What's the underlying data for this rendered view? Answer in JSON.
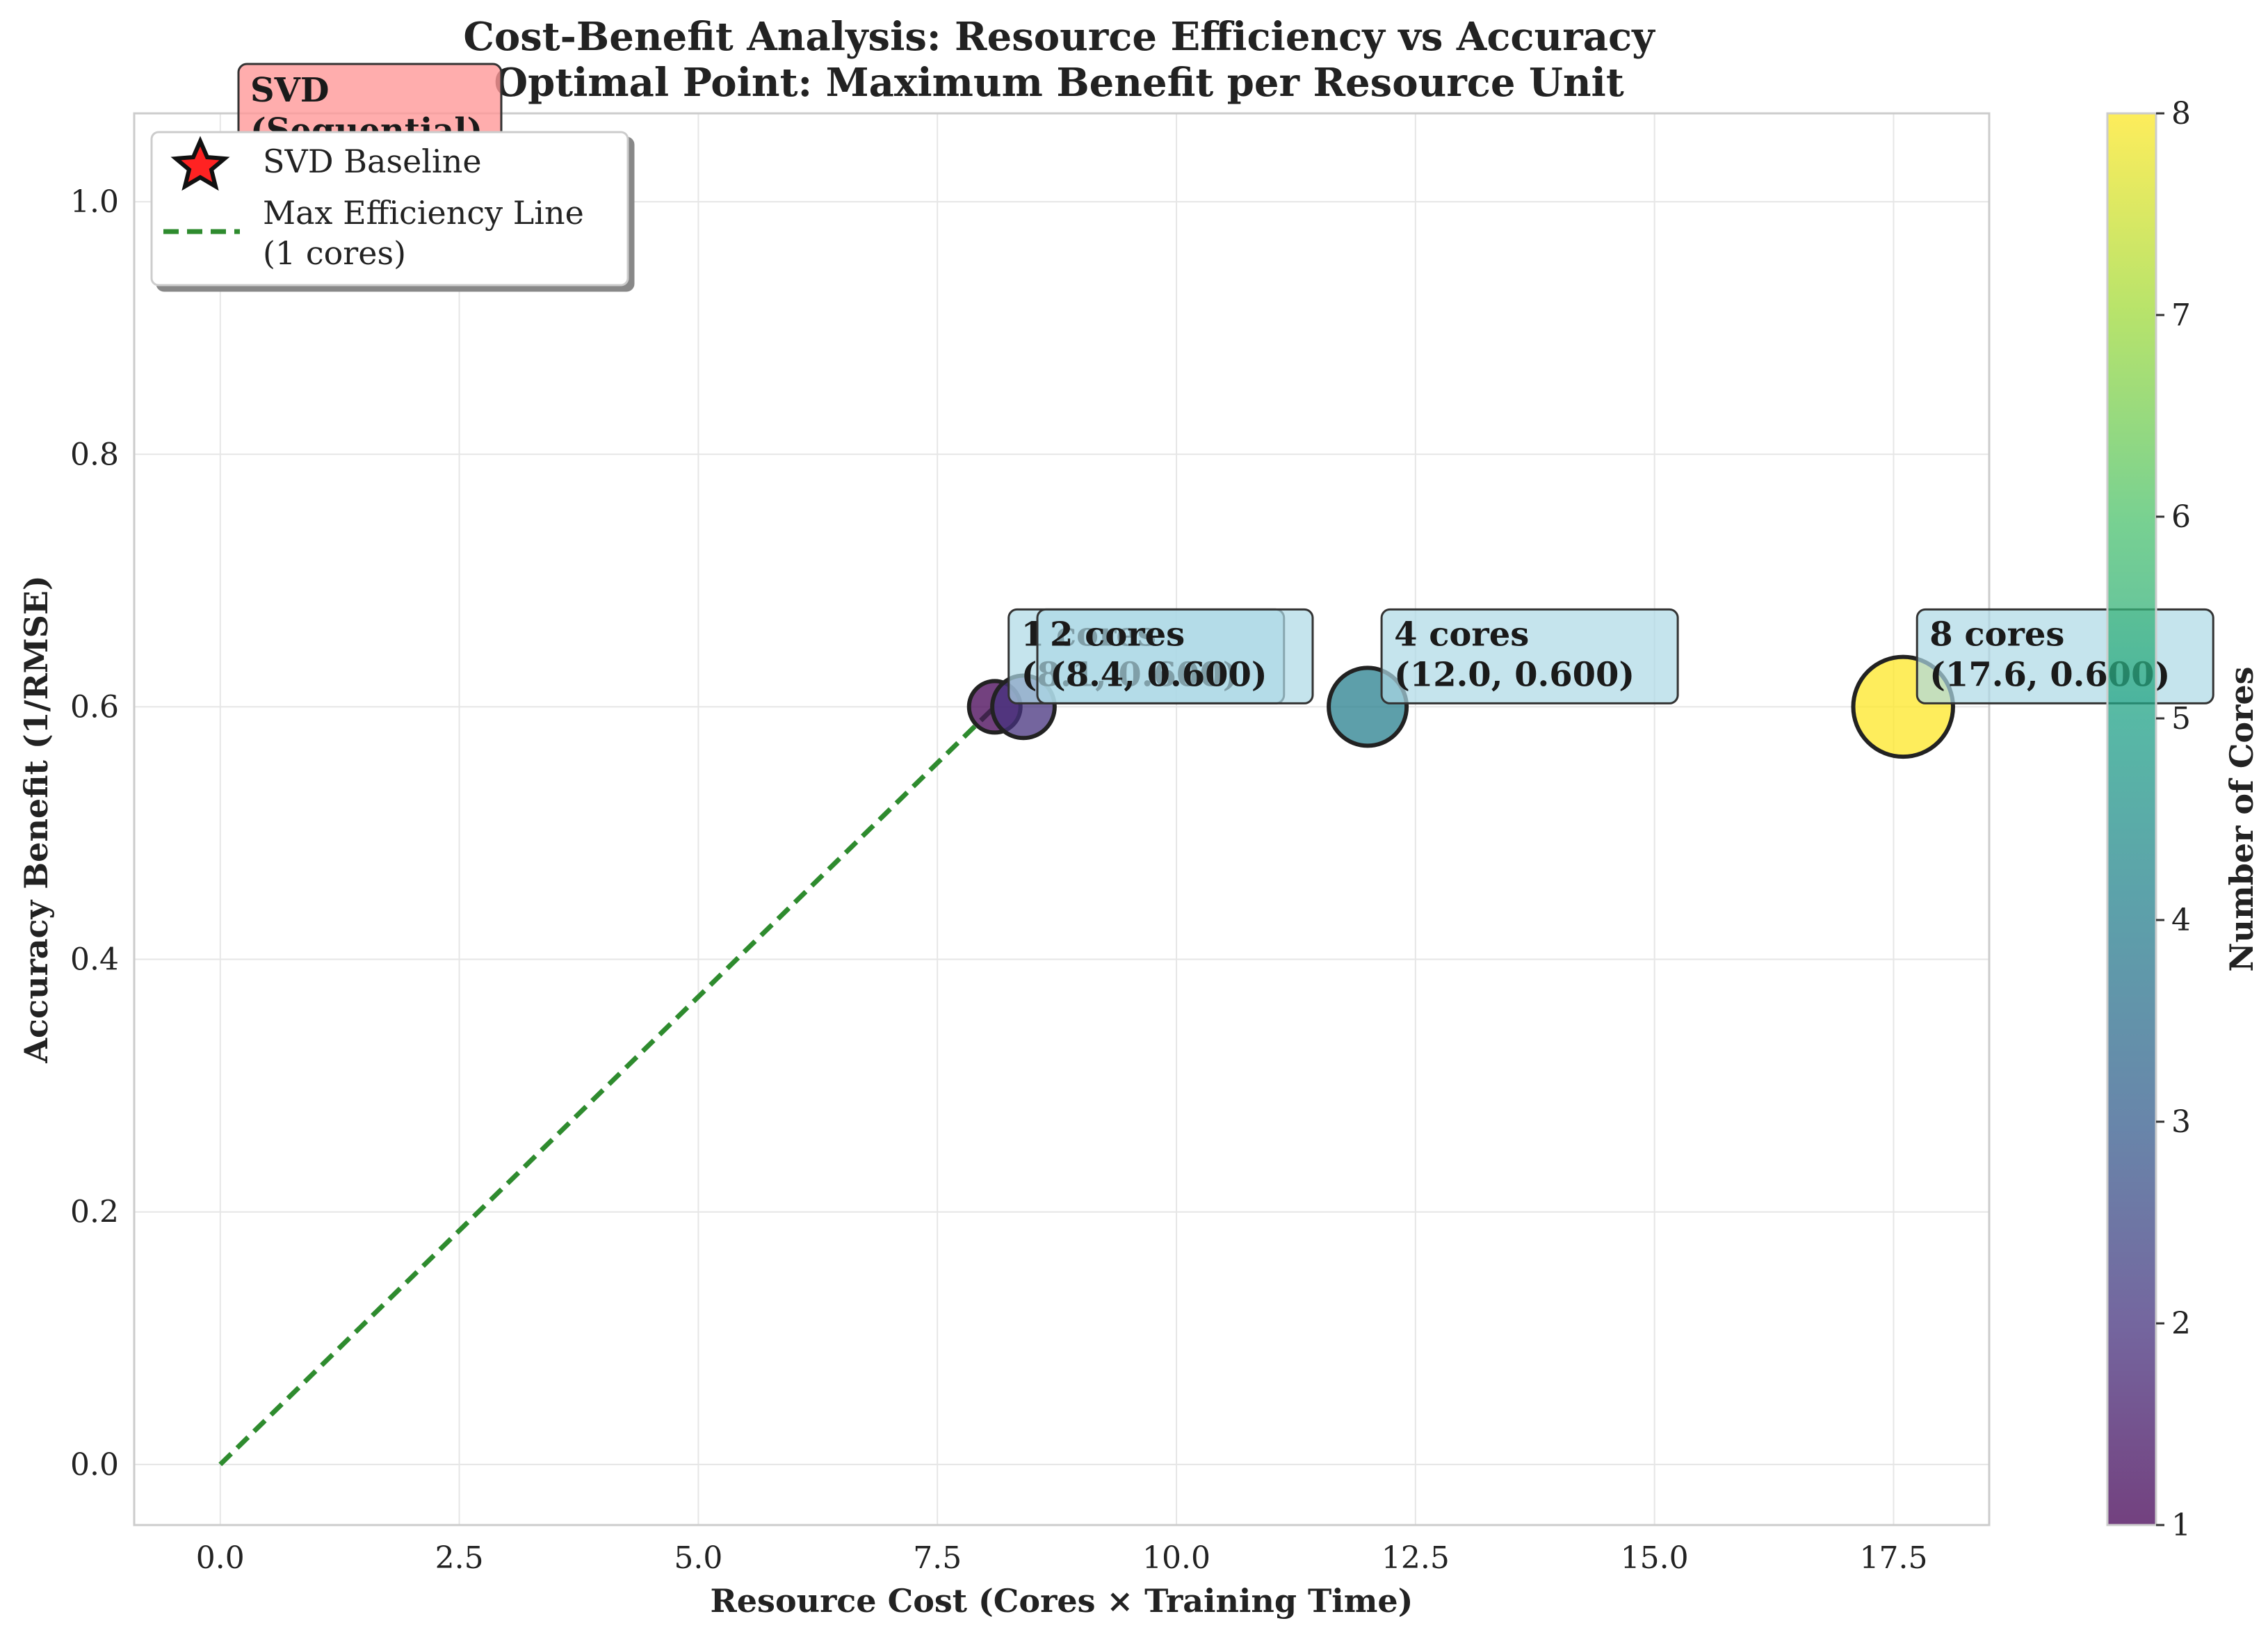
{
  "chart_data": {
    "type": "scatter",
    "title": "Cost-Benefit Analysis: Resource Efficiency vs Accuracy",
    "subtitle": "Optimal Point: Maximum Benefit per Resource Unit",
    "xlabel": "Resource Cost (Cores × Training Time)",
    "ylabel": "Accuracy Benefit (1/RMSE)",
    "xlim": [
      -0.9,
      18.5
    ],
    "ylim": [
      -0.048,
      1.07
    ],
    "xticks": [
      0.0,
      2.5,
      5.0,
      7.5,
      10.0,
      12.5,
      15.0,
      17.5
    ],
    "xtick_labels": [
      "0.0",
      "2.5",
      "5.0",
      "7.5",
      "10.0",
      "12.5",
      "15.0",
      "17.5"
    ],
    "yticks": [
      0.0,
      0.2,
      0.4,
      0.6,
      0.8,
      1.0
    ],
    "ytick_labels": [
      "0.0",
      "0.2",
      "0.4",
      "0.6",
      "0.8",
      "1.0"
    ],
    "grid": true,
    "points": [
      {
        "cores": 1,
        "x": 8.1,
        "y": 0.6,
        "label_line1": "1 cores",
        "label_line2": "(8.1, 0.600)"
      },
      {
        "cores": 2,
        "x": 8.4,
        "y": 0.6,
        "label_line1": "2 cores",
        "label_line2": "(8.4, 0.600)"
      },
      {
        "cores": 4,
        "x": 12.0,
        "y": 0.6,
        "label_line1": "4 cores",
        "label_line2": "(12.0, 0.600)"
      },
      {
        "cores": 8,
        "x": 17.6,
        "y": 0.6,
        "label_line1": "8 cores",
        "label_line2": "(17.6, 0.600)"
      }
    ],
    "baseline": {
      "name": "SVD Baseline",
      "x": -1.0,
      "y": 1.09,
      "label_line1": "SVD",
      "label_line2": "(Sequential)"
    },
    "efficiency_line": {
      "name": "Max Efficiency Line",
      "name_line2": "(1 cores)",
      "x": [
        0.0,
        8.1
      ],
      "y": [
        0.0,
        0.6
      ]
    },
    "legend_placement": "upper-left",
    "colorbar": {
      "label": "Number of Cores",
      "min": 1,
      "max": 8,
      "ticks": [
        1,
        2,
        3,
        4,
        5,
        6,
        7,
        8
      ],
      "colormap": "viridis"
    }
  },
  "colors": {
    "efficiency_line": "#2e8b2e",
    "annotation_fill": "#add8e6",
    "baseline_box_fill": "#ff9999",
    "star_fill": "#ff2222",
    "axes_edge": "#cccccc"
  }
}
